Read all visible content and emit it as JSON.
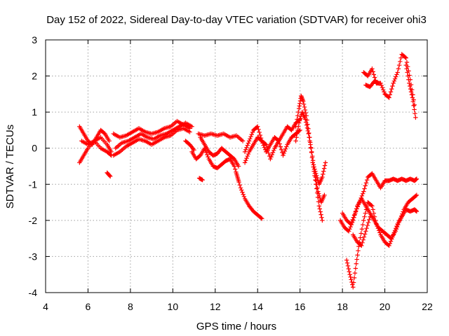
{
  "chart_data": {
    "type": "scatter",
    "title": "Day 152 of 2022, Sidereal Day-to-day VTEC variation (SDTVAR) for receiver ohi3",
    "xlabel": "GPS time / hours",
    "ylabel": "SDTVAR / TECUs",
    "xlim": [
      4,
      22
    ],
    "ylim": [
      -4,
      3
    ],
    "xticks": [
      4,
      6,
      8,
      10,
      12,
      14,
      16,
      18,
      20,
      22
    ],
    "xtick_labels": [
      "4",
      "6",
      "8",
      "10",
      "12",
      "14",
      "16",
      "18",
      "20",
      "22"
    ],
    "yticks": [
      -4,
      -3,
      -2,
      -1,
      0,
      1,
      2,
      3
    ],
    "ytick_labels": [
      "-4",
      "-3",
      "-2",
      "-1",
      "0",
      "1",
      "2",
      "3"
    ],
    "grid": true,
    "legend": "none",
    "marker": "plus",
    "color": "#ff0000",
    "series": [
      {
        "name": "trace-1",
        "x": [
          5.6,
          5.8,
          6.0,
          6.2,
          6.4,
          6.6,
          6.8,
          7.0
        ],
        "y": [
          0.6,
          0.4,
          0.2,
          0.1,
          0.3,
          0.5,
          0.4,
          0.2
        ]
      },
      {
        "name": "trace-2",
        "x": [
          5.6,
          5.8,
          6.0,
          6.3,
          6.6,
          6.9,
          7.1
        ],
        "y": [
          -0.4,
          -0.2,
          0.0,
          0.2,
          0.3,
          0.1,
          -0.1
        ]
      },
      {
        "name": "trace-3",
        "x": [
          5.7,
          6.0,
          6.3,
          6.6,
          6.9,
          7.1
        ],
        "y": [
          0.2,
          0.1,
          0.2,
          0.0,
          -0.1,
          -0.2
        ]
      },
      {
        "name": "trace-4",
        "x": [
          6.9,
          7.05
        ],
        "y": [
          -0.68,
          -0.78
        ]
      },
      {
        "name": "trace-5",
        "x": [
          7.2,
          7.5,
          7.8,
          8.1,
          8.4,
          8.7,
          9.0,
          9.3,
          9.6,
          9.9,
          10.2,
          10.5,
          10.8
        ],
        "y": [
          0.4,
          0.3,
          0.35,
          0.45,
          0.55,
          0.45,
          0.4,
          0.45,
          0.55,
          0.6,
          0.75,
          0.65,
          0.55
        ]
      },
      {
        "name": "trace-6",
        "x": [
          7.2,
          7.5,
          7.8,
          8.1,
          8.4,
          8.7,
          9.0,
          9.3,
          9.6,
          9.9,
          10.2,
          10.5,
          10.8
        ],
        "y": [
          -0.2,
          -0.1,
          0.05,
          0.15,
          0.25,
          0.2,
          0.1,
          0.2,
          0.3,
          0.35,
          0.5,
          0.55,
          0.45
        ]
      },
      {
        "name": "trace-7",
        "x": [
          7.3,
          7.6,
          7.9,
          8.2,
          8.5,
          8.8,
          9.1,
          9.4,
          9.7,
          10.0,
          10.3,
          10.6,
          10.9
        ],
        "y": [
          0.0,
          0.15,
          0.2,
          0.3,
          0.4,
          0.3,
          0.25,
          0.35,
          0.4,
          0.5,
          0.6,
          0.7,
          0.6
        ]
      },
      {
        "name": "trace-8",
        "x": [
          10.6,
          10.8,
          11.0
        ],
        "y": [
          0.2,
          0.1,
          -0.05
        ]
      },
      {
        "name": "trace-9",
        "x": [
          11.2,
          11.5,
          11.8,
          12.1,
          12.4,
          12.7,
          13.0,
          13.3
        ],
        "y": [
          0.4,
          0.35,
          0.4,
          0.35,
          0.4,
          0.3,
          0.35,
          0.2
        ]
      },
      {
        "name": "trace-10",
        "x": [
          10.9,
          11.1,
          11.3,
          11.5,
          11.7,
          11.9,
          12.1,
          12.3,
          12.5,
          12.7,
          12.9,
          13.1
        ],
        "y": [
          -0.1,
          -0.3,
          -0.2,
          0.0,
          -0.3,
          -0.5,
          -0.55,
          -0.45,
          -0.35,
          -0.3,
          -0.5,
          -0.9
        ]
      },
      {
        "name": "trace-11",
        "x": [
          11.3,
          11.5,
          11.7,
          11.9,
          12.1,
          12.3,
          12.5,
          12.7,
          12.9,
          13.1
        ],
        "y": [
          0.3,
          0.1,
          -0.1,
          -0.2,
          -0.15,
          0.0,
          -0.1,
          -0.2,
          -0.3,
          -0.5
        ]
      },
      {
        "name": "trace-12",
        "x": [
          11.25,
          11.4
        ],
        "y": [
          -0.83,
          -0.88
        ]
      },
      {
        "name": "trace-13",
        "x": [
          13.0,
          13.2,
          13.4,
          13.6,
          13.8,
          14.0,
          14.2
        ],
        "y": [
          -0.7,
          -1.1,
          -1.4,
          -1.6,
          -1.75,
          -1.85,
          -1.95
        ]
      },
      {
        "name": "trace-14",
        "x": [
          13.4,
          13.6,
          13.8,
          14.0,
          14.2,
          14.4,
          14.6,
          14.8,
          15.0,
          15.2,
          15.4,
          15.6,
          15.8,
          16.0
        ],
        "y": [
          -0.1,
          0.2,
          0.5,
          0.6,
          0.2,
          -0.1,
          0.1,
          0.3,
          0.2,
          0.4,
          0.6,
          0.5,
          0.7,
          0.8
        ]
      },
      {
        "name": "trace-15",
        "x": [
          13.4,
          13.6,
          13.8,
          14.0,
          14.2,
          14.4,
          14.6,
          14.8,
          15.0,
          15.2,
          15.4,
          15.6,
          15.8,
          16.0
        ],
        "y": [
          -0.4,
          -0.1,
          0.1,
          0.3,
          0.2,
          0.1,
          -0.3,
          0.0,
          0.2,
          -0.2,
          0.1,
          0.3,
          0.4,
          0.5
        ]
      },
      {
        "name": "trace-16",
        "x": [
          15.8,
          15.95,
          16.05,
          16.15,
          16.3,
          16.45,
          16.6,
          16.75,
          16.9,
          17.05
        ],
        "y": [
          0.6,
          1.1,
          1.45,
          1.3,
          0.9,
          0.3,
          -0.4,
          -1.0,
          -1.6,
          -2.0
        ]
      },
      {
        "name": "trace-17",
        "x": [
          15.8,
          15.95,
          16.1,
          16.25,
          16.4,
          16.55,
          16.7,
          16.85,
          17.0,
          17.15
        ],
        "y": [
          0.2,
          0.7,
          1.0,
          0.8,
          0.4,
          -0.1,
          -0.7,
          -1.2,
          -1.5,
          -1.3
        ]
      },
      {
        "name": "trace-18",
        "x": [
          16.6,
          16.75,
          16.9,
          17.05,
          17.2
        ],
        "y": [
          -0.4,
          -0.7,
          -1.0,
          -0.8,
          -0.4
        ]
      },
      {
        "name": "trace-19",
        "x": [
          17.9,
          18.1,
          18.3,
          18.5,
          18.7,
          18.9,
          19.1,
          19.3,
          19.5,
          19.7,
          19.9,
          20.1,
          20.3,
          20.5,
          20.7,
          20.9,
          21.1,
          21.3,
          21.5
        ],
        "y": [
          -2.0,
          -2.2,
          -2.3,
          -2.0,
          -1.6,
          -1.4,
          -1.6,
          -1.8,
          -2.0,
          -2.2,
          -2.3,
          -2.4,
          -2.5,
          -2.3,
          -2.0,
          -1.7,
          -1.5,
          -1.4,
          -1.3
        ]
      },
      {
        "name": "trace-20",
        "x": [
          18.0,
          18.2,
          18.4,
          18.6,
          18.8,
          19.0,
          19.2,
          19.4,
          19.6,
          19.8,
          20.0,
          20.2,
          20.4,
          20.6,
          20.8,
          21.0,
          21.2,
          21.4,
          21.5
        ],
        "y": [
          -1.8,
          -2.0,
          -2.1,
          -1.8,
          -1.5,
          -1.2,
          -0.8,
          -0.7,
          -0.9,
          -1.1,
          -0.9,
          -0.9,
          -0.85,
          -0.9,
          -0.85,
          -0.9,
          -0.85,
          -0.9,
          -0.85
        ]
      },
      {
        "name": "trace-21",
        "x": [
          18.2,
          18.35,
          18.5,
          18.65,
          18.8,
          19.0,
          19.2,
          19.4,
          19.6,
          19.8,
          20.0,
          20.2,
          20.4,
          20.6,
          20.8,
          21.0,
          21.2,
          21.4,
          21.5
        ],
        "y": [
          -3.1,
          -3.5,
          -3.85,
          -3.2,
          -2.6,
          -2.0,
          -1.5,
          -1.6,
          -2.1,
          -2.4,
          -2.6,
          -2.7,
          -2.4,
          -2.1,
          -1.9,
          -1.7,
          -1.75,
          -1.7,
          -1.75
        ]
      },
      {
        "name": "trace-22",
        "x": [
          18.5,
          18.7,
          18.9,
          19.1,
          19.3
        ],
        "y": [
          -2.4,
          -2.6,
          -2.7,
          -2.3,
          -1.9
        ]
      },
      {
        "name": "trace-23",
        "x": [
          19.0,
          19.2,
          19.4,
          19.6,
          19.8,
          20.0,
          20.2,
          20.4,
          20.6,
          20.8,
          21.0,
          21.2,
          21.4
        ],
        "y": [
          2.1,
          2.0,
          2.2,
          1.8,
          1.8,
          1.5,
          1.4,
          1.8,
          2.1,
          2.6,
          2.5,
          1.9,
          1.2
        ]
      },
      {
        "name": "trace-24",
        "x": [
          19.1,
          19.3,
          19.5,
          19.7
        ],
        "y": [
          1.75,
          1.7,
          1.85,
          1.8
        ]
      },
      {
        "name": "trace-25",
        "x": [
          21.0,
          21.15,
          21.3,
          21.45
        ],
        "y": [
          2.3,
          1.8,
          1.4,
          0.85
        ]
      }
    ]
  }
}
